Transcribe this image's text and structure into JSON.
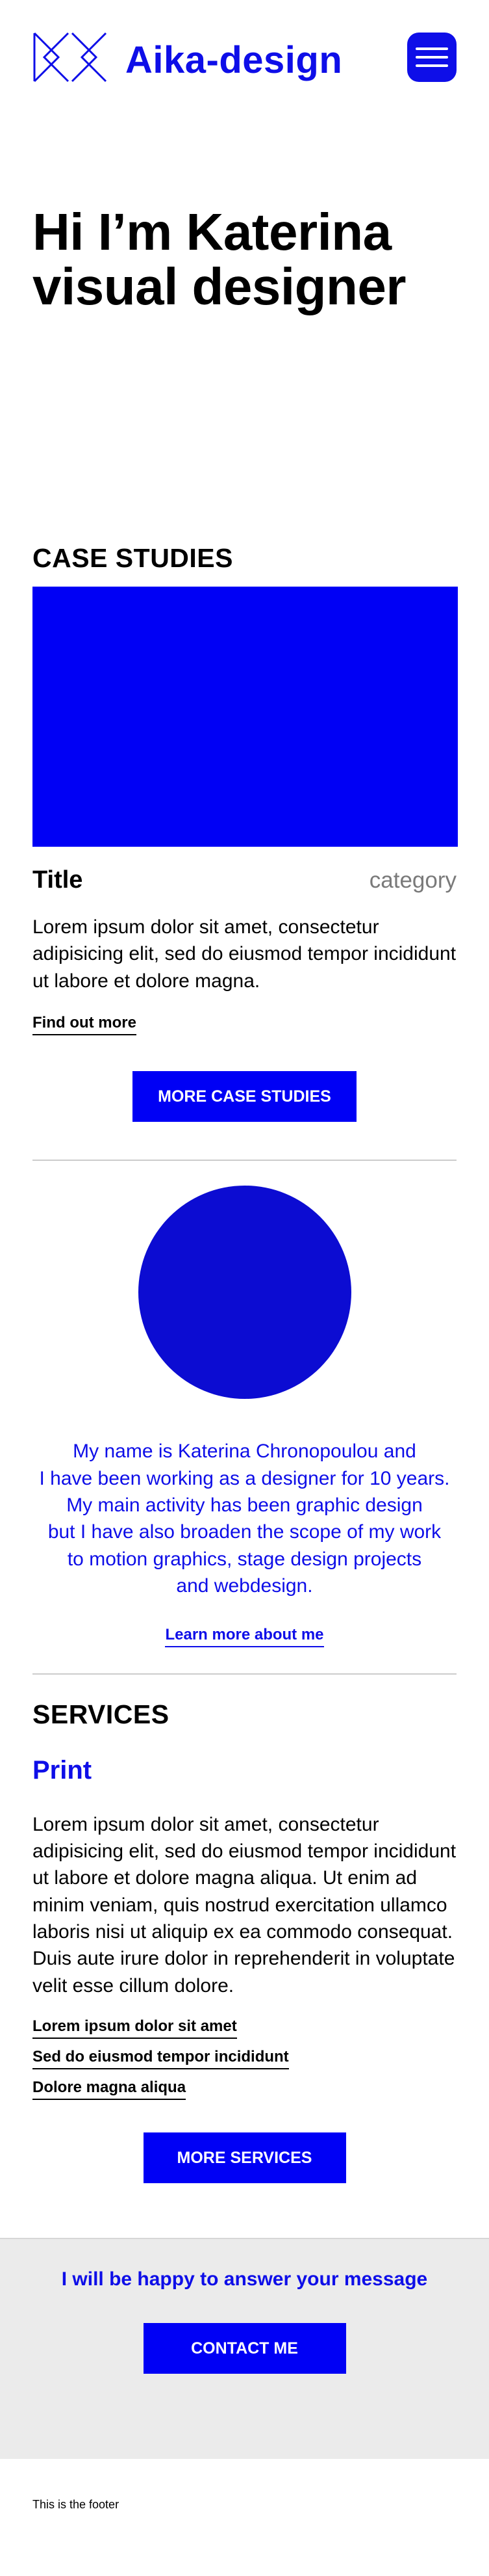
{
  "header": {
    "brand": "Aika-design",
    "menu_label": "menu"
  },
  "hero": {
    "line1": "Hi I’m Katerina",
    "line2": "visual designer"
  },
  "case_studies": {
    "section_title": "CASE STUDIES",
    "item": {
      "title": "Title",
      "category": "category",
      "text": "Lorem ipsum dolor sit amet, consectetur adipisicing elit, sed do eiusmod tempor incididunt ut labore et dolore magna.",
      "link": "Find out more"
    },
    "more_button": "MORE CASE STUDIES"
  },
  "about": {
    "lines": [
      "My name is Katerina Chronopoulou and",
      "I have been working as a designer for 10 years.",
      "My main activity has been graphic design",
      "but I have also broaden the scope of my work",
      "to motion graphics, stage design projects",
      "and webdesign."
    ],
    "link": "Learn more about me"
  },
  "services": {
    "section_title": "SERVICES",
    "print_title": "Print",
    "text": "Lorem ipsum dolor sit amet, consectetur adipisicing elit, sed do eiusmod tempor incididunt ut labore et dolore magna aliqua. Ut enim ad minim veniam, quis nostrud exercitation ullamco laboris nisi ut aliquip ex ea commodo consequat. Duis aute irure dolor in reprehenderit in voluptate velit esse cillum dolore.",
    "links": [
      "Lorem ipsum dolor sit amet",
      "Sed do eiusmod tempor incididunt",
      "Dolore magna aliqua"
    ],
    "more_button": "MORE SERVICES"
  },
  "contact": {
    "text": "I will be happy to answer your message",
    "button": "CONTACT ME"
  },
  "footer": {
    "text": "This is the footer"
  },
  "colors": {
    "accent": "#0e0ee8",
    "image_placeholder": "#0000f5",
    "circle": "#0c0cd2",
    "contact_bg": "#ebebeb",
    "category_gray": "#7a7a7a"
  },
  "icons": {
    "logo": "km-monogram-icon",
    "menu": "hamburger-menu-icon"
  }
}
